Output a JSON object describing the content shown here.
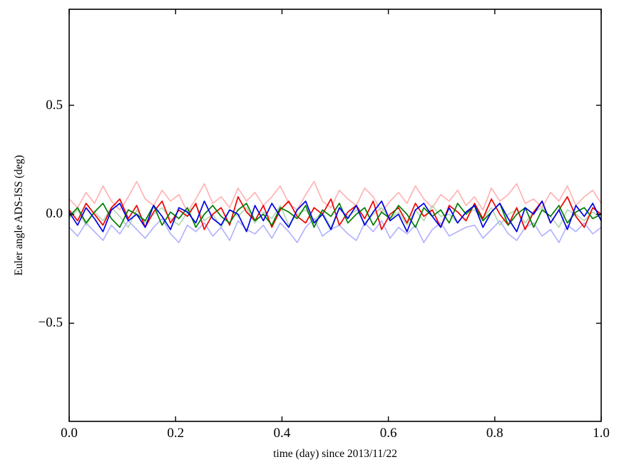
{
  "chart_data": {
    "type": "line",
    "title": "",
    "xlabel": "time (day) since 2013/11/22",
    "ylabel": "Euler angle ADS-ISS (deg)",
    "xlim": [
      0.0,
      1.0
    ],
    "ylim": [
      -0.95,
      0.94
    ],
    "grid": false,
    "legend": "none",
    "background": "#ffffff",
    "axes_color": "#000000",
    "xticks": [
      {
        "value": 0.0,
        "label": "0.0"
      },
      {
        "value": 0.2,
        "label": "0.2"
      },
      {
        "value": 0.4,
        "label": "0.4"
      },
      {
        "value": 0.6,
        "label": "0.6"
      },
      {
        "value": 0.8,
        "label": "0.8"
      },
      {
        "value": 1.0,
        "label": "1.0"
      }
    ],
    "yticks": [
      {
        "value": 0.5,
        "label": "0.5"
      },
      {
        "value": 0.0,
        "label": "0.0"
      },
      {
        "value": -0.5,
        "label": "−0.5"
      }
    ],
    "x": {
      "start": 0.0,
      "end": 1.0
    },
    "series": [
      {
        "name": "light-red",
        "color": "#ffb3b3",
        "values": [
          0.07,
          0.03,
          0.1,
          0.05,
          0.13,
          0.06,
          0.02,
          0.08,
          0.15,
          0.07,
          0.04,
          0.11,
          0.06,
          0.09,
          0.01,
          0.07,
          0.14,
          0.05,
          0.08,
          0.03,
          0.12,
          0.06,
          0.1,
          0.04,
          0.08,
          0.13,
          0.05,
          0.02,
          0.09,
          0.15,
          0.06,
          0.03,
          0.11,
          0.07,
          0.04,
          0.12,
          0.08,
          0.01,
          0.06,
          0.1,
          0.05,
          0.13,
          0.07,
          0.03,
          0.09,
          0.06,
          0.11,
          0.04,
          0.08,
          0.02,
          0.12,
          0.06,
          0.09,
          0.14,
          0.05,
          0.07,
          0.03,
          0.1,
          0.06,
          0.13,
          0.04,
          0.08,
          0.11,
          0.05
        ]
      },
      {
        "name": "light-green",
        "color": "#b3d9b3",
        "values": [
          -0.02,
          0.02,
          -0.05,
          0.01,
          -0.03,
          0.03,
          -0.01,
          -0.06,
          0.02,
          -0.04,
          0.0,
          0.03,
          -0.02,
          -0.05,
          0.01,
          0.04,
          -0.03,
          0.0,
          -0.06,
          0.02,
          -0.01,
          0.03,
          -0.04,
          0.01,
          -0.02,
          0.04,
          -0.05,
          0.0,
          0.02,
          -0.03,
          0.01,
          -0.06,
          0.03,
          -0.01,
          0.02,
          -0.04,
          0.0,
          0.03,
          -0.02,
          0.01,
          -0.05,
          0.02,
          -0.03,
          0.04,
          -0.01,
          0.0,
          -0.04,
          0.01,
          0.02,
          -0.02,
          0.03,
          -0.05,
          0.0,
          0.02,
          -0.04,
          0.01,
          0.03,
          -0.01,
          -0.06,
          0.02,
          0.0,
          -0.03,
          0.01,
          -0.02
        ]
      },
      {
        "name": "light-blue",
        "color": "#b3b3ff",
        "values": [
          -0.06,
          -0.1,
          -0.04,
          -0.08,
          -0.12,
          -0.05,
          -0.09,
          -0.03,
          -0.07,
          -0.11,
          -0.06,
          -0.02,
          -0.09,
          -0.13,
          -0.05,
          -0.08,
          -0.04,
          -0.1,
          -0.06,
          -0.12,
          -0.03,
          -0.07,
          -0.09,
          -0.05,
          -0.11,
          -0.04,
          -0.08,
          -0.13,
          -0.06,
          -0.02,
          -0.1,
          -0.07,
          -0.05,
          -0.09,
          -0.12,
          -0.04,
          -0.08,
          -0.03,
          -0.11,
          -0.06,
          -0.09,
          -0.05,
          -0.13,
          -0.07,
          -0.04,
          -0.1,
          -0.08,
          -0.06,
          -0.05,
          -0.11,
          -0.07,
          -0.03,
          -0.09,
          -0.12,
          -0.06,
          -0.04,
          -0.1,
          -0.07,
          -0.13,
          -0.05,
          -0.08,
          -0.04,
          -0.09,
          -0.06
        ]
      },
      {
        "name": "red",
        "color": "#ee0000",
        "values": [
          0.02,
          -0.03,
          0.05,
          0.0,
          -0.05,
          0.03,
          0.07,
          -0.02,
          0.04,
          -0.06,
          0.01,
          0.06,
          -0.04,
          0.02,
          -0.01,
          0.05,
          -0.07,
          0.0,
          0.03,
          -0.05,
          0.08,
          0.01,
          -0.03,
          0.04,
          -0.06,
          0.02,
          0.06,
          -0.01,
          -0.04,
          0.03,
          0.0,
          0.07,
          -0.05,
          0.01,
          0.04,
          -0.02,
          0.06,
          -0.07,
          0.0,
          0.03,
          -0.04,
          0.05,
          -0.01,
          0.02,
          -0.06,
          0.04,
          0.01,
          -0.03,
          0.05,
          -0.02,
          0.07,
          0.0,
          -0.05,
          0.03,
          -0.07,
          0.01,
          0.06,
          -0.04,
          0.02,
          0.08,
          -0.01,
          -0.06,
          0.03,
          0.0
        ]
      },
      {
        "name": "green",
        "color": "#007d00",
        "values": [
          -0.01,
          0.03,
          -0.04,
          0.01,
          0.05,
          -0.02,
          -0.06,
          0.02,
          0.0,
          -0.03,
          0.04,
          -0.05,
          0.01,
          -0.02,
          0.03,
          -0.06,
          0.0,
          0.04,
          -0.01,
          -0.04,
          0.02,
          0.05,
          -0.03,
          0.0,
          -0.05,
          0.03,
          0.01,
          -0.02,
          0.04,
          -0.06,
          0.02,
          -0.01,
          0.05,
          -0.04,
          0.0,
          0.03,
          -0.05,
          0.01,
          -0.02,
          0.04,
          0.0,
          -0.06,
          0.03,
          -0.01,
          0.02,
          -0.04,
          0.05,
          0.0,
          0.04,
          -0.03,
          0.01,
          0.05,
          -0.05,
          0.0,
          0.03,
          -0.06,
          0.02,
          -0.01,
          0.04,
          -0.04,
          0.01,
          0.03,
          -0.02,
          0.0
        ]
      },
      {
        "name": "blue",
        "color": "#0000e6",
        "values": [
          0.01,
          -0.05,
          0.03,
          -0.02,
          -0.08,
          0.02,
          0.05,
          -0.03,
          0.0,
          -0.06,
          0.04,
          -0.01,
          -0.07,
          0.03,
          0.01,
          -0.04,
          0.06,
          -0.02,
          -0.05,
          0.02,
          0.0,
          -0.08,
          0.04,
          -0.03,
          0.05,
          -0.01,
          -0.06,
          0.02,
          0.06,
          -0.04,
          0.0,
          -0.07,
          0.03,
          -0.02,
          0.04,
          -0.05,
          0.01,
          0.06,
          -0.03,
          0.0,
          -0.08,
          0.02,
          0.05,
          -0.01,
          -0.06,
          0.03,
          -0.04,
          0.01,
          0.04,
          -0.06,
          0.01,
          0.05,
          -0.02,
          -0.08,
          0.03,
          0.0,
          0.06,
          -0.04,
          0.02,
          -0.07,
          0.04,
          -0.01,
          0.05,
          -0.03
        ]
      }
    ]
  }
}
